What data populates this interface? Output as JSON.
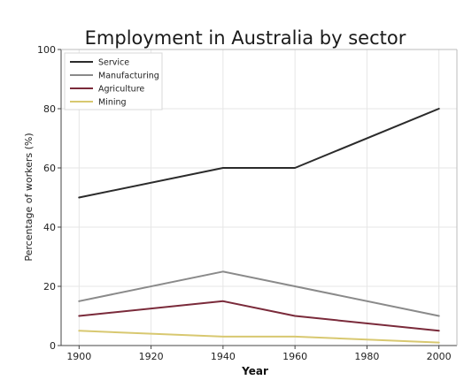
{
  "chart_data": {
    "type": "line",
    "title": "Employment in Australia by sector",
    "xlabel": "Year",
    "ylabel": "Percentage of workers (%)",
    "x": [
      1900,
      1940,
      1960,
      2000
    ],
    "xticks": [
      1900,
      1920,
      1940,
      1960,
      1980,
      2000
    ],
    "yticks": [
      0,
      20,
      40,
      60,
      80,
      100
    ],
    "xlim": [
      1895,
      2005
    ],
    "ylim": [
      0,
      100
    ],
    "grid": true,
    "legend_position": "top-left",
    "series": [
      {
        "name": "Service",
        "values": [
          50,
          60,
          60,
          80
        ],
        "color": "#2b2b2b"
      },
      {
        "name": "Manufacturing",
        "values": [
          15,
          25,
          20,
          10
        ],
        "color": "#8a8a8a"
      },
      {
        "name": "Agriculture",
        "values": [
          10,
          15,
          10,
          5
        ],
        "color": "#7a2a3a"
      },
      {
        "name": "Mining",
        "values": [
          5,
          3,
          3,
          1
        ],
        "color": "#d8c870"
      }
    ]
  }
}
